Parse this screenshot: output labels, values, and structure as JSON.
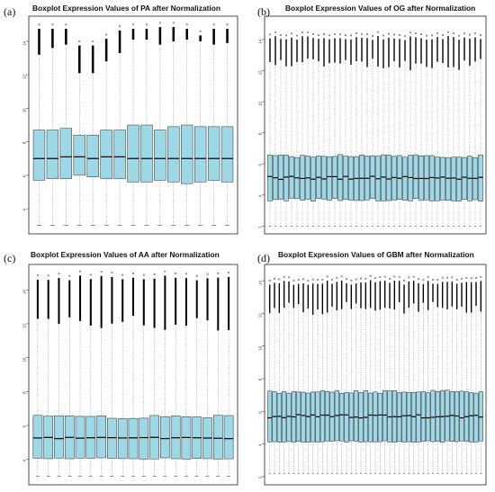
{
  "colors": {
    "box_fill": "#9ed8e6",
    "box_stroke": "#2a2a2a",
    "median": "#000000",
    "whisker": "#888888",
    "outlier": "#000000",
    "frame": "#222222"
  },
  "panels": [
    {
      "letter": "(a)",
      "title": "Boxplot Expression Values of PA after Normalization"
    },
    {
      "letter": "(b)",
      "title": "Boxplot Expression Values of OG after Normalization"
    },
    {
      "letter": "(c)",
      "title": "Boxplot Expression Values of AA after Normalization"
    },
    {
      "letter": "(d)",
      "title": "Boxplot Expression Values of GBM after Normalization"
    }
  ],
  "chart_data": [
    {
      "type": "boxplot",
      "title": "Boxplot Expression Values of PA after Normalization",
      "xlabel": "",
      "ylabel": "",
      "ylim": [
        2.5,
        15.5
      ],
      "yticks": [
        4,
        6,
        8,
        10,
        12,
        14
      ],
      "n_samples": 15,
      "whisker_low": 3.0,
      "whisker_high": 14.6,
      "samples": [
        {
          "q1": 5.7,
          "median": 7.0,
          "q3": 8.7,
          "outlier_top": 15.0,
          "whisker_top": 13.2
        },
        {
          "q1": 5.8,
          "median": 7.0,
          "q3": 8.7,
          "outlier_top": 15.0,
          "whisker_top": 13.6
        },
        {
          "q1": 5.8,
          "median": 7.1,
          "q3": 8.8,
          "outlier_top": 15.0,
          "whisker_top": 13.8
        },
        {
          "q1": 6.0,
          "median": 7.1,
          "q3": 8.4,
          "outlier_top": 14.0,
          "whisker_top": 12.1
        },
        {
          "q1": 5.9,
          "median": 7.0,
          "q3": 8.4,
          "outlier_top": 14.0,
          "whisker_top": 12.1
        },
        {
          "q1": 5.8,
          "median": 7.1,
          "q3": 8.7,
          "outlier_top": 14.4,
          "whisker_top": 12.8
        },
        {
          "q1": 5.8,
          "median": 7.1,
          "q3": 8.7,
          "outlier_top": 14.9,
          "whisker_top": 13.3
        },
        {
          "q1": 5.6,
          "median": 7.0,
          "q3": 9.0,
          "outlier_top": 15.0,
          "whisker_top": 14.1
        },
        {
          "q1": 5.6,
          "median": 7.0,
          "q3": 9.0,
          "outlier_top": 15.0,
          "whisker_top": 14.1
        },
        {
          "q1": 5.7,
          "median": 7.0,
          "q3": 8.7,
          "outlier_top": 15.1,
          "whisker_top": 13.8
        },
        {
          "q1": 5.6,
          "median": 7.0,
          "q3": 8.9,
          "outlier_top": 15.1,
          "whisker_top": 14.0
        },
        {
          "q1": 5.5,
          "median": 7.0,
          "q3": 9.0,
          "outlier_top": 15.0,
          "whisker_top": 14.1
        },
        {
          "q1": 5.6,
          "median": 7.0,
          "q3": 8.9,
          "outlier_top": 14.6,
          "whisker_top": 14.0
        },
        {
          "q1": 5.7,
          "median": 7.0,
          "q3": 8.9,
          "outlier_top": 15.0,
          "whisker_top": 13.8
        },
        {
          "q1": 5.6,
          "median": 7.0,
          "q3": 8.9,
          "outlier_top": 15.0,
          "whisker_top": 13.9
        }
      ]
    },
    {
      "type": "boxplot",
      "title": "Boxplot Expression Values of OG after Normalization",
      "xlabel": "",
      "ylabel": "",
      "ylim": [
        1.5,
        15.5
      ],
      "yticks": [
        2,
        4,
        6,
        8,
        10,
        12,
        14
      ],
      "n_samples": 40,
      "whisker_low": 2.0,
      "box_q1_range": [
        3.6,
        3.8
      ],
      "box_median_range": [
        5.0,
        5.2
      ],
      "box_q3_range": [
        6.4,
        6.6
      ],
      "whisker_top_range": [
        12.0,
        12.8
      ],
      "outlier_top": 14.5
    },
    {
      "type": "boxplot",
      "title": "Boxplot Expression Values of AA after Normalization",
      "xlabel": "",
      "ylabel": "",
      "ylim": [
        2.5,
        15.5
      ],
      "yticks": [
        4,
        6,
        8,
        10,
        12,
        14
      ],
      "n_samples": 19,
      "whisker_low": 3.0,
      "box_q1_range": [
        4.0,
        4.1
      ],
      "box_median_range": [
        5.2,
        5.3
      ],
      "box_q3_range": [
        6.4,
        6.6
      ],
      "whisker_top_range": [
        11.6,
        12.6
      ],
      "outlier_top": 15.1
    },
    {
      "type": "boxplot",
      "title": "Boxplot Expression Values of GBM after Normalization",
      "xlabel": "",
      "ylabel": "",
      "ylim": [
        1.5,
        15.0
      ],
      "yticks": [
        2,
        4,
        6,
        8,
        10,
        12,
        14
      ],
      "n_samples": 45,
      "whisker_low": 2.2,
      "box_q1_range": [
        4.1,
        4.2
      ],
      "box_median_range": [
        5.6,
        5.8
      ],
      "box_q3_range": [
        7.1,
        7.3
      ],
      "whisker_top_range": [
        11.9,
        12.7
      ],
      "outlier_top": 14.3
    }
  ]
}
